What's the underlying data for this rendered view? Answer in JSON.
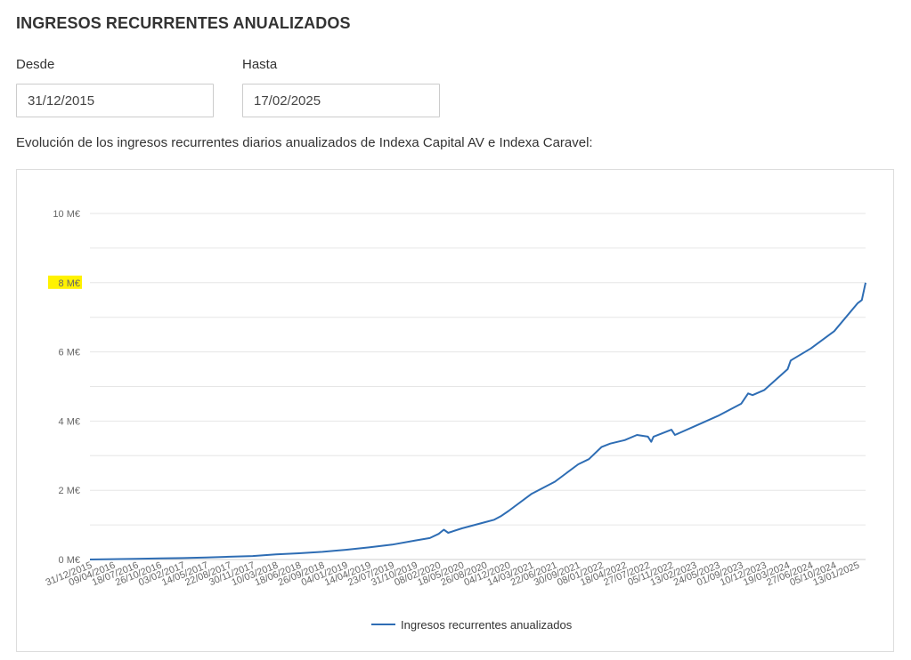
{
  "page": {
    "title": "INGRESOS RECURRENTES ANUALIZADOS",
    "description": "Evolución de los ingresos recurrentes diarios anualizados de Indexa Capital AV e Indexa Caravel:"
  },
  "filters": {
    "from_label": "Desde",
    "from_value": "31/12/2015",
    "to_label": "Hasta",
    "to_value": "17/02/2025"
  },
  "colors": {
    "line": "#2e6db4",
    "grid": "#e6e6e6",
    "highlight": "#fff200"
  },
  "chart_data": {
    "type": "line",
    "title": "",
    "xlabel": "",
    "ylabel": "",
    "ylim": [
      0,
      10
    ],
    "y_unit": "M€",
    "yticks": [
      0,
      2,
      4,
      6,
      8,
      10
    ],
    "ytick_labels": [
      "0 M€",
      "2 M€",
      "4 M€",
      "6 M€",
      "8 M€",
      "10 M€"
    ],
    "highlighted_ytick": "8 M€",
    "grid": true,
    "legend_position": "bottom-center",
    "x_tick_labels": [
      "31/12/2015",
      "09/04/2016",
      "18/07/2016",
      "26/10/2016",
      "03/02/2017",
      "14/05/2017",
      "22/08/2017",
      "30/11/2017",
      "10/03/2018",
      "18/06/2018",
      "26/09/2018",
      "04/01/2019",
      "14/04/2019",
      "23/07/2019",
      "31/10/2019",
      "08/02/2020",
      "18/05/2020",
      "26/08/2020",
      "04/12/2020",
      "14/03/2021",
      "22/06/2021",
      "30/09/2021",
      "08/01/2022",
      "18/04/2022",
      "27/07/2022",
      "05/11/2022",
      "13/02/2023",
      "24/05/2023",
      "01/09/2023",
      "10/12/2023",
      "19/03/2024",
      "27/06/2024",
      "05/10/2024",
      "13/01/2025"
    ],
    "series": [
      {
        "name": "Ingresos recurrentes anualizados",
        "x": [
          "31/12/2015",
          "09/04/2016",
          "18/07/2016",
          "26/10/2016",
          "03/02/2017",
          "14/05/2017",
          "22/08/2017",
          "30/11/2017",
          "10/03/2018",
          "18/06/2018",
          "26/09/2018",
          "04/01/2019",
          "14/04/2019",
          "23/07/2019",
          "31/10/2019",
          "01/01/2020",
          "08/02/2020",
          "01/03/2020",
          "20/03/2020",
          "18/05/2020",
          "26/08/2020",
          "04/10/2020",
          "01/11/2020",
          "04/12/2020",
          "14/03/2021",
          "22/06/2021",
          "30/09/2021",
          "15/11/2021",
          "08/01/2022",
          "15/02/2022",
          "18/04/2022",
          "10/06/2022",
          "27/07/2022",
          "10/08/2022",
          "20/08/2022",
          "05/11/2022",
          "20/11/2022",
          "13/02/2023",
          "24/05/2023",
          "01/09/2023",
          "01/10/2023",
          "20/10/2023",
          "10/12/2023",
          "19/03/2024",
          "01/04/2024",
          "27/06/2024",
          "05/10/2024",
          "13/01/2025",
          "01/02/2025",
          "17/02/2025"
        ],
        "values": [
          0.0,
          0.01,
          0.02,
          0.03,
          0.04,
          0.06,
          0.08,
          0.1,
          0.15,
          0.18,
          0.22,
          0.28,
          0.35,
          0.43,
          0.55,
          0.62,
          0.74,
          0.86,
          0.77,
          0.9,
          1.08,
          1.15,
          1.25,
          1.4,
          1.9,
          2.25,
          2.75,
          2.9,
          3.25,
          3.35,
          3.45,
          3.6,
          3.55,
          3.4,
          3.55,
          3.75,
          3.6,
          3.85,
          4.15,
          4.5,
          4.8,
          4.75,
          4.9,
          5.5,
          5.75,
          6.1,
          6.6,
          7.4,
          7.5,
          8.0
        ]
      }
    ]
  }
}
